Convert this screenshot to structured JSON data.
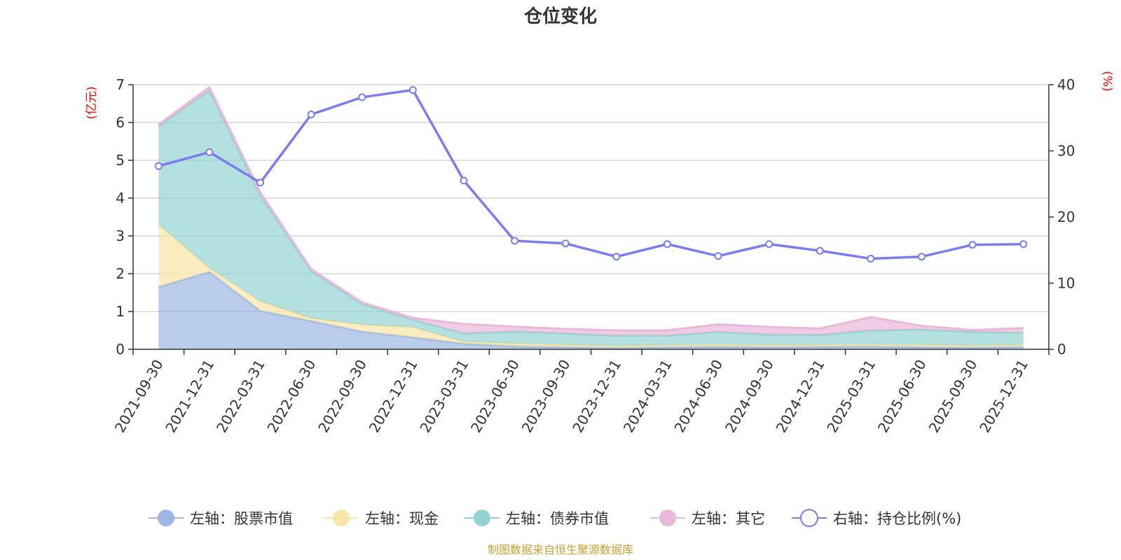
{
  "chart_data": {
    "type": "area",
    "title": "仓位变化",
    "left_axis": {
      "unit": "(亿元)",
      "min": 0,
      "max": 7,
      "ticks": [
        0,
        1,
        2,
        3,
        4,
        5,
        6,
        7
      ]
    },
    "right_axis": {
      "unit": "(%)",
      "min": 0,
      "max": 40,
      "ticks": [
        0,
        10,
        20,
        30,
        40
      ]
    },
    "grid": true,
    "legend_position": "bottom",
    "categories": [
      "2021-09-30",
      "2021-12-31",
      "2022-03-31",
      "2022-06-30",
      "2022-09-30",
      "2022-12-31",
      "2023-03-31",
      "2023-06-30",
      "2023-09-30",
      "2023-12-31",
      "2024-03-31",
      "2024-06-30",
      "2024-09-30",
      "2024-12-31",
      "2025-03-31",
      "2025-06-30",
      "2025-09-30",
      "2025-12-31"
    ],
    "series": [
      {
        "name": "左轴：股票市值",
        "axis": "left",
        "kind": "stacked-area",
        "color": "#9cb7e3",
        "values": [
          1.65,
          2.05,
          1.02,
          0.75,
          0.47,
          0.32,
          0.15,
          0.08,
          0.06,
          0.04,
          0.06,
          0.07,
          0.06,
          0.07,
          0.08,
          0.06,
          0.05,
          0.07
        ]
      },
      {
        "name": "左轴：现金",
        "axis": "left",
        "kind": "stacked-area",
        "color": "#f8e6a8",
        "values": [
          1.65,
          0.1,
          0.25,
          0.07,
          0.18,
          0.26,
          0.05,
          0.07,
          0.06,
          0.05,
          0.05,
          0.06,
          0.05,
          0.05,
          0.05,
          0.06,
          0.05,
          0.05
        ]
      },
      {
        "name": "左轴：债券市值",
        "axis": "left",
        "kind": "stacked-area",
        "color": "#94d3d3",
        "values": [
          2.6,
          4.7,
          2.8,
          1.25,
          0.55,
          0.2,
          0.22,
          0.32,
          0.3,
          0.27,
          0.25,
          0.33,
          0.28,
          0.26,
          0.37,
          0.4,
          0.36,
          0.32
        ]
      },
      {
        "name": "左轴：其它",
        "axis": "left",
        "kind": "stacked-area",
        "color": "#eab8da",
        "values": [
          0.05,
          0.08,
          0.08,
          0.05,
          0.04,
          0.05,
          0.25,
          0.13,
          0.12,
          0.14,
          0.14,
          0.2,
          0.2,
          0.17,
          0.35,
          0.1,
          0.05,
          0.12
        ]
      },
      {
        "name": "右轴：持仓比例(%)",
        "axis": "right",
        "kind": "line",
        "color": "#7a7cf0",
        "values": [
          27.7,
          29.8,
          25.2,
          35.5,
          38.1,
          39.2,
          25.5,
          16.4,
          16.0,
          14.0,
          15.9,
          14.1,
          15.9,
          14.9,
          13.7,
          14.0,
          15.8,
          15.9
        ]
      }
    ]
  },
  "source_text": "制图数据来自恒生聚源数据库"
}
